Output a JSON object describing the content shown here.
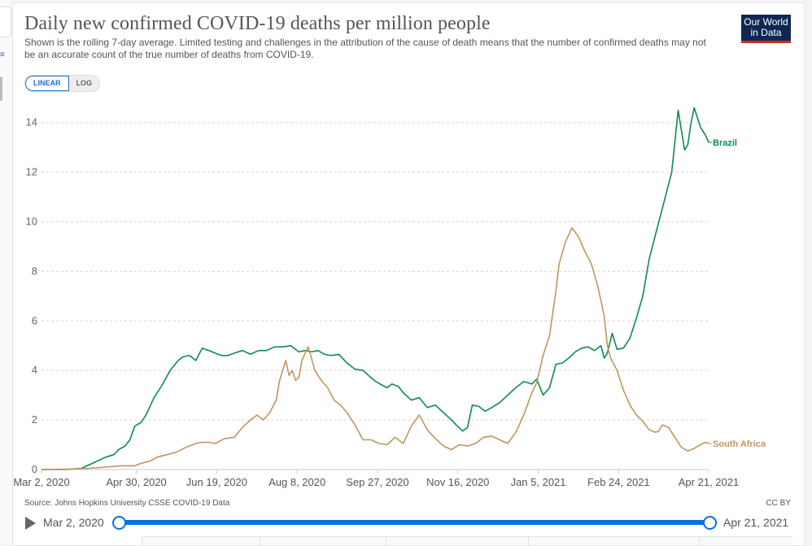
{
  "header": {
    "title": "Daily new confirmed COVID-19 deaths per million people",
    "subtitle": "Shown is the rolling 7-day average. Limited testing and challenges in the attribution of the cause of death means that the number of confirmed deaths may not be an accurate count of the true number of deaths from COVID-19.",
    "logo_line1": "Our World",
    "logo_line2": "in Data"
  },
  "controls": {
    "linear_label": "LINEAR",
    "log_label": "LOG",
    "selected_scale": "LINEAR"
  },
  "footer": {
    "source": "Source: Johns Hopkins University CSSE COVID-19 Data",
    "license": "CC BY"
  },
  "timeline": {
    "start_label": "Mar 2, 2020",
    "end_label": "Apr 21, 2021",
    "accent_color": "#0b6fde"
  },
  "chart_data": {
    "type": "line",
    "title": "Daily new confirmed COVID-19 deaths per million people",
    "xlabel": "",
    "ylabel": "",
    "x_start_date": "2020-03-02",
    "x_unit": "days since Mar 2, 2020",
    "xlim": [
      0,
      415
    ],
    "ylim": [
      0,
      14.8
    ],
    "grid": true,
    "legend": "inline-right",
    "y_ticks": [
      0,
      2,
      4,
      6,
      8,
      10,
      12,
      14
    ],
    "x_ticks": [
      {
        "day": 0,
        "label": "Mar 2, 2020"
      },
      {
        "day": 59,
        "label": "Apr 30, 2020"
      },
      {
        "day": 109,
        "label": "Jun 19, 2020"
      },
      {
        "day": 159,
        "label": "Aug 8, 2020"
      },
      {
        "day": 209,
        "label": "Sep 27, 2020"
      },
      {
        "day": 259,
        "label": "Nov 16, 2020"
      },
      {
        "day": 309,
        "label": "Jan 5, 2021"
      },
      {
        "day": 359,
        "label": "Feb 24, 2021"
      },
      {
        "day": 415,
        "label": "Apr 21, 2021"
      }
    ],
    "series": [
      {
        "name": "Brazil",
        "color": "#0e8b4a",
        "x": [
          0,
          15,
          25,
          30,
          35,
          40,
          45,
          48,
          52,
          55,
          58,
          62,
          65,
          70,
          75,
          80,
          85,
          88,
          92,
          96,
          100,
          104,
          108,
          112,
          116,
          120,
          125,
          130,
          135,
          140,
          145,
          150,
          155,
          160,
          164,
          168,
          172,
          176,
          180,
          185,
          190,
          195,
          200,
          205,
          208,
          212,
          215,
          218,
          222,
          225,
          230,
          235,
          240,
          245,
          250,
          255,
          258,
          262,
          265,
          268,
          272,
          276,
          280,
          285,
          290,
          295,
          300,
          305,
          308,
          312,
          316,
          320,
          324,
          328,
          332,
          336,
          340,
          344,
          348,
          350,
          352,
          355,
          358,
          362,
          366,
          370,
          374,
          378,
          382,
          386,
          388,
          392,
          396,
          400,
          402,
          404,
          406,
          410,
          413,
          415
        ],
        "values": [
          0,
          0,
          0.05,
          0.2,
          0.35,
          0.5,
          0.6,
          0.8,
          0.95,
          1.2,
          1.75,
          1.9,
          2.2,
          2.9,
          3.4,
          4.0,
          4.4,
          4.55,
          4.6,
          4.4,
          4.9,
          4.8,
          4.7,
          4.6,
          4.6,
          4.7,
          4.8,
          4.65,
          4.8,
          4.8,
          4.95,
          4.95,
          5.0,
          4.75,
          4.8,
          4.75,
          4.8,
          4.65,
          4.6,
          4.65,
          4.3,
          4.05,
          4.0,
          3.7,
          3.55,
          3.4,
          3.3,
          3.45,
          3.35,
          3.1,
          2.8,
          2.9,
          2.5,
          2.6,
          2.3,
          2.0,
          1.8,
          1.55,
          1.7,
          2.6,
          2.55,
          2.35,
          2.5,
          2.7,
          3.0,
          3.3,
          3.55,
          3.45,
          3.65,
          3.0,
          3.3,
          4.25,
          4.3,
          4.5,
          4.75,
          4.9,
          4.95,
          4.8,
          5.0,
          4.5,
          4.7,
          5.5,
          4.85,
          4.9,
          5.3,
          6.1,
          7.0,
          8.5,
          9.5,
          10.5,
          11.0,
          12.0,
          14.5,
          12.9,
          13.1,
          14.0,
          14.6,
          13.8,
          13.5,
          13.2
        ]
      },
      {
        "name": "South Africa",
        "color": "#c09561",
        "x": [
          0,
          20,
          30,
          40,
          50,
          58,
          62,
          68,
          72,
          78,
          84,
          90,
          96,
          100,
          104,
          108,
          114,
          120,
          125,
          130,
          134,
          138,
          142,
          146,
          148,
          150,
          152,
          154,
          156,
          158,
          160,
          162,
          164,
          166,
          170,
          174,
          178,
          182,
          186,
          190,
          195,
          200,
          205,
          210,
          215,
          220,
          225,
          230,
          235,
          240,
          245,
          250,
          255,
          260,
          265,
          270,
          275,
          280,
          285,
          290,
          295,
          300,
          305,
          308,
          312,
          316,
          318,
          320,
          322,
          326,
          330,
          334,
          338,
          342,
          346,
          350,
          352,
          354,
          358,
          362,
          366,
          370,
          374,
          378,
          382,
          384,
          386,
          390,
          394,
          398,
          402,
          406,
          410,
          413,
          415
        ],
        "values": [
          0,
          0.02,
          0.05,
          0.1,
          0.15,
          0.15,
          0.25,
          0.35,
          0.5,
          0.6,
          0.7,
          0.9,
          1.05,
          1.1,
          1.1,
          1.05,
          1.25,
          1.3,
          1.7,
          2.0,
          2.2,
          2.0,
          2.3,
          2.8,
          3.55,
          4.0,
          4.4,
          3.8,
          4.0,
          3.6,
          3.7,
          4.4,
          4.7,
          4.95,
          4.0,
          3.6,
          3.3,
          2.8,
          2.6,
          2.3,
          1.8,
          1.2,
          1.2,
          1.05,
          1.0,
          1.3,
          1.05,
          1.75,
          2.2,
          1.6,
          1.25,
          0.95,
          0.8,
          1.0,
          0.95,
          1.05,
          1.3,
          1.35,
          1.2,
          1.05,
          1.5,
          2.2,
          3.1,
          3.5,
          4.6,
          5.4,
          6.3,
          7.2,
          8.3,
          9.2,
          9.75,
          9.4,
          8.8,
          8.3,
          7.4,
          6.2,
          5.0,
          4.5,
          4.0,
          3.2,
          2.6,
          2.2,
          1.95,
          1.6,
          1.5,
          1.55,
          1.8,
          1.7,
          1.3,
          0.9,
          0.75,
          0.85,
          1.0,
          1.1,
          1.05
        ]
      }
    ]
  }
}
